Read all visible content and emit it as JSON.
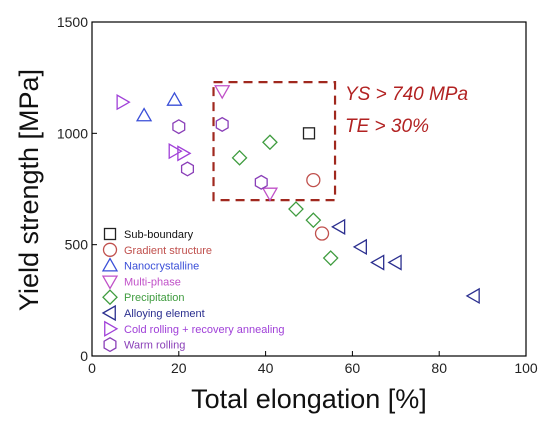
{
  "chart_data": {
    "type": "scatter",
    "xlabel": "Total elongation [%]",
    "ylabel": "Yield strength [MPa]",
    "xlim": [
      0,
      100
    ],
    "ylim": [
      0,
      1500
    ],
    "xticks": [
      0,
      20,
      40,
      60,
      80,
      100
    ],
    "yticks": [
      0,
      500,
      1000,
      1500
    ],
    "grid": false,
    "legend_position": "bottom-left",
    "series": [
      {
        "name": "Sub-boundary",
        "marker": "square",
        "color": "#222222",
        "points": [
          [
            50,
            1000
          ]
        ]
      },
      {
        "name": "Gradient structure",
        "marker": "circle",
        "color": "#c0504d",
        "points": [
          [
            51,
            790
          ],
          [
            53,
            550
          ]
        ]
      },
      {
        "name": "Nanocrystalline",
        "marker": "triangle-up",
        "color": "#3a4fd8",
        "points": [
          [
            12,
            1080
          ],
          [
            19,
            1150
          ]
        ]
      },
      {
        "name": "Multi-phase",
        "marker": "triangle-down",
        "color": "#c050c8",
        "points": [
          [
            30,
            1190
          ],
          [
            41,
            730
          ]
        ]
      },
      {
        "name": "Precipitation",
        "marker": "diamond",
        "color": "#3f9c3f",
        "points": [
          [
            34,
            890
          ],
          [
            41,
            960
          ],
          [
            47,
            660
          ],
          [
            51,
            610
          ],
          [
            55,
            440
          ]
        ]
      },
      {
        "name": "Alloying element",
        "marker": "triangle-left",
        "color": "#2b2f8f",
        "points": [
          [
            57,
            580
          ],
          [
            62,
            490
          ],
          [
            66,
            420
          ],
          [
            70,
            420
          ],
          [
            88,
            270
          ]
        ]
      },
      {
        "name": "Cold rolling + recovery annealing",
        "marker": "triangle-right",
        "color": "#a040d8",
        "points": [
          [
            7,
            1140
          ],
          [
            19,
            920
          ],
          [
            21,
            910
          ]
        ]
      },
      {
        "name": "Warm rolling",
        "marker": "hexagon",
        "color": "#8a3fb8",
        "points": [
          [
            30,
            1040
          ],
          [
            20,
            1030
          ],
          [
            22,
            840
          ],
          [
            39,
            780
          ]
        ]
      }
    ],
    "annotations": [
      {
        "text": "YS > 740 MPa",
        "color": "#b22222"
      },
      {
        "text": "TE > 30%",
        "color": "#b22222"
      }
    ],
    "highlight_region": {
      "x": [
        28,
        56
      ],
      "y": [
        700,
        1230
      ],
      "style": "dashed",
      "color": "#a0281e"
    }
  }
}
